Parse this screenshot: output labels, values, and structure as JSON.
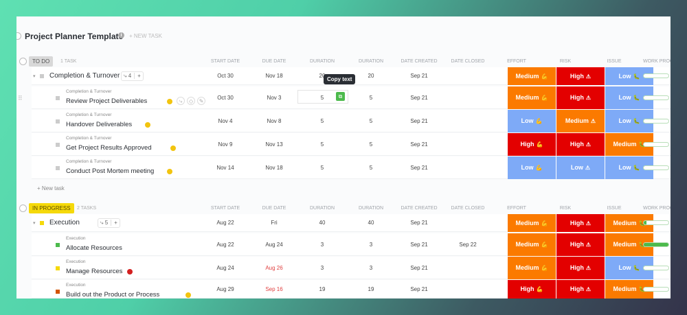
{
  "title": "Project Planner Template",
  "new_task_header": "+ NEW TASK",
  "columns": [
    "START DATE",
    "DUE DATE",
    "DURATION",
    "DURATION",
    "DATE CREATED",
    "DATE CLOSED",
    "EFFORT",
    "RISK",
    "ISSUE",
    "WORK PROG"
  ],
  "tooltip": "Copy text",
  "new_task_link": "+ New task",
  "colors": {
    "orange": "#fb7a00",
    "red": "#e30000",
    "blue": "#7eaaf7",
    "green": "#4cba4c"
  },
  "groups": [
    {
      "status": "TO DO",
      "count": "1 TASK",
      "status_bg": "#d8d8d8",
      "status_color": "#555",
      "parent": {
        "name": "Completion & Turnover",
        "subtasks": "4",
        "start": "Oct 30",
        "due": "Nov 18",
        "duration": "20",
        "duration2": "20",
        "created": "Sep 21",
        "closed": "",
        "effort": "Medium",
        "risk": "High",
        "issue": "Low",
        "progress": 0,
        "color": "#ccc"
      },
      "tasks": [
        {
          "parent_label": "Completion & Turnover",
          "name": "Review Project Deliverables",
          "start": "Oct 30",
          "due": "Nov 3",
          "duration": "5",
          "duration2": "5",
          "created": "Sep 21",
          "closed": "",
          "effort": "Medium",
          "risk": "High",
          "issue": "Low",
          "progress": 0,
          "color": "#ccc",
          "priority": "yellow"
        },
        {
          "parent_label": "Completion & Turnover",
          "name": "Handover Deliverables",
          "start": "Nov 4",
          "due": "Nov 8",
          "duration": "5",
          "duration2": "5",
          "created": "Sep 21",
          "closed": "",
          "effort": "Low",
          "risk": "Medium",
          "issue": "Low",
          "progress": 0,
          "color": "#ccc",
          "priority": "yellow"
        },
        {
          "parent_label": "Completion & Turnover",
          "name": "Get Project Results Approved",
          "start": "Nov 9",
          "due": "Nov 13",
          "duration": "5",
          "duration2": "5",
          "created": "Sep 21",
          "closed": "",
          "effort": "High",
          "risk": "High",
          "issue": "Medium",
          "progress": 0,
          "color": "#ccc",
          "priority": "yellow"
        },
        {
          "parent_label": "Completion & Turnover",
          "name": "Conduct Post Mortem meeting",
          "start": "Nov 14",
          "due": "Nov 18",
          "duration": "5",
          "duration2": "5",
          "created": "Sep 21",
          "closed": "",
          "effort": "Low",
          "risk": "Low",
          "issue": "Low",
          "progress": 0,
          "color": "#ccc",
          "priority": "yellow"
        }
      ]
    },
    {
      "status": "IN PROGRESS",
      "count": "2 TASKS",
      "status_bg": "#f5d90a",
      "status_color": "#5a4a00",
      "parent": {
        "name": "Execution",
        "subtasks": "5",
        "start": "Aug 22",
        "due": "Fri",
        "duration": "40",
        "duration2": "40",
        "created": "Sep 21",
        "closed": "",
        "effort": "Medium",
        "risk": "High",
        "issue": "Medium",
        "progress": 10,
        "color": "#f5d90a"
      },
      "tasks": [
        {
          "parent_label": "Execution",
          "name": "Allocate Resources",
          "start": "Aug 22",
          "due": "Aug 24",
          "duration": "3",
          "duration2": "3",
          "created": "Sep 21",
          "closed": "Sep 22",
          "effort": "Medium",
          "risk": "High",
          "issue": "Medium",
          "progress": 100,
          "color": "#4cba4c",
          "priority": ""
        },
        {
          "parent_label": "Execution",
          "name": "Manage Resources",
          "start": "Aug 24",
          "due": "Aug 26",
          "due_overdue": true,
          "duration": "3",
          "duration2": "3",
          "created": "Sep 21",
          "closed": "",
          "effort": "Medium",
          "risk": "High",
          "issue": "Low",
          "progress": 0,
          "color": "#f5d90a",
          "priority": "red"
        },
        {
          "parent_label": "Execution",
          "name": "Build out the Product or Process",
          "start": "Aug 29",
          "due": "Sep 16",
          "due_overdue": true,
          "duration": "19",
          "duration2": "19",
          "created": "Sep 21",
          "closed": "",
          "effort": "High",
          "risk": "High",
          "issue": "Medium",
          "progress": 0,
          "color": "#d35400",
          "priority": "yellow"
        }
      ]
    }
  ]
}
